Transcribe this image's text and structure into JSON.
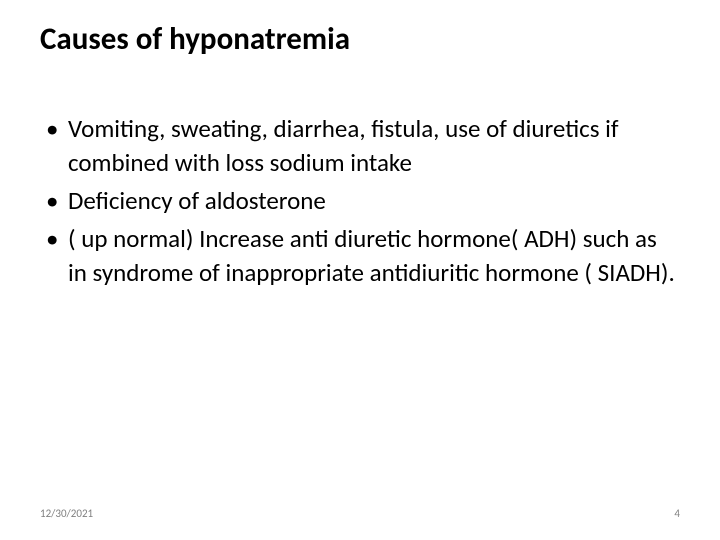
{
  "slide": {
    "title": "Causes of hyponatremia",
    "title_fontsize": 31,
    "title_fontweight": 700,
    "bullet_fontsize": 25,
    "bullet_lineheight": 34,
    "bullets": [
      "Vomiting, sweating, diarrhea, fistula, use of diuretics if combined with loss sodium intake",
      "Deficiency of aldosterone",
      "( up normal) Increase  anti diuretic hormone( ADH) such as in syndrome of inappropriate antidiuritic hormone ( SIADH)."
    ],
    "footer": {
      "date": "12/30/2021",
      "page_number": "4",
      "fontsize": 11,
      "color": "#808080"
    },
    "background_color": "#ffffff",
    "text_color": "#000000"
  }
}
